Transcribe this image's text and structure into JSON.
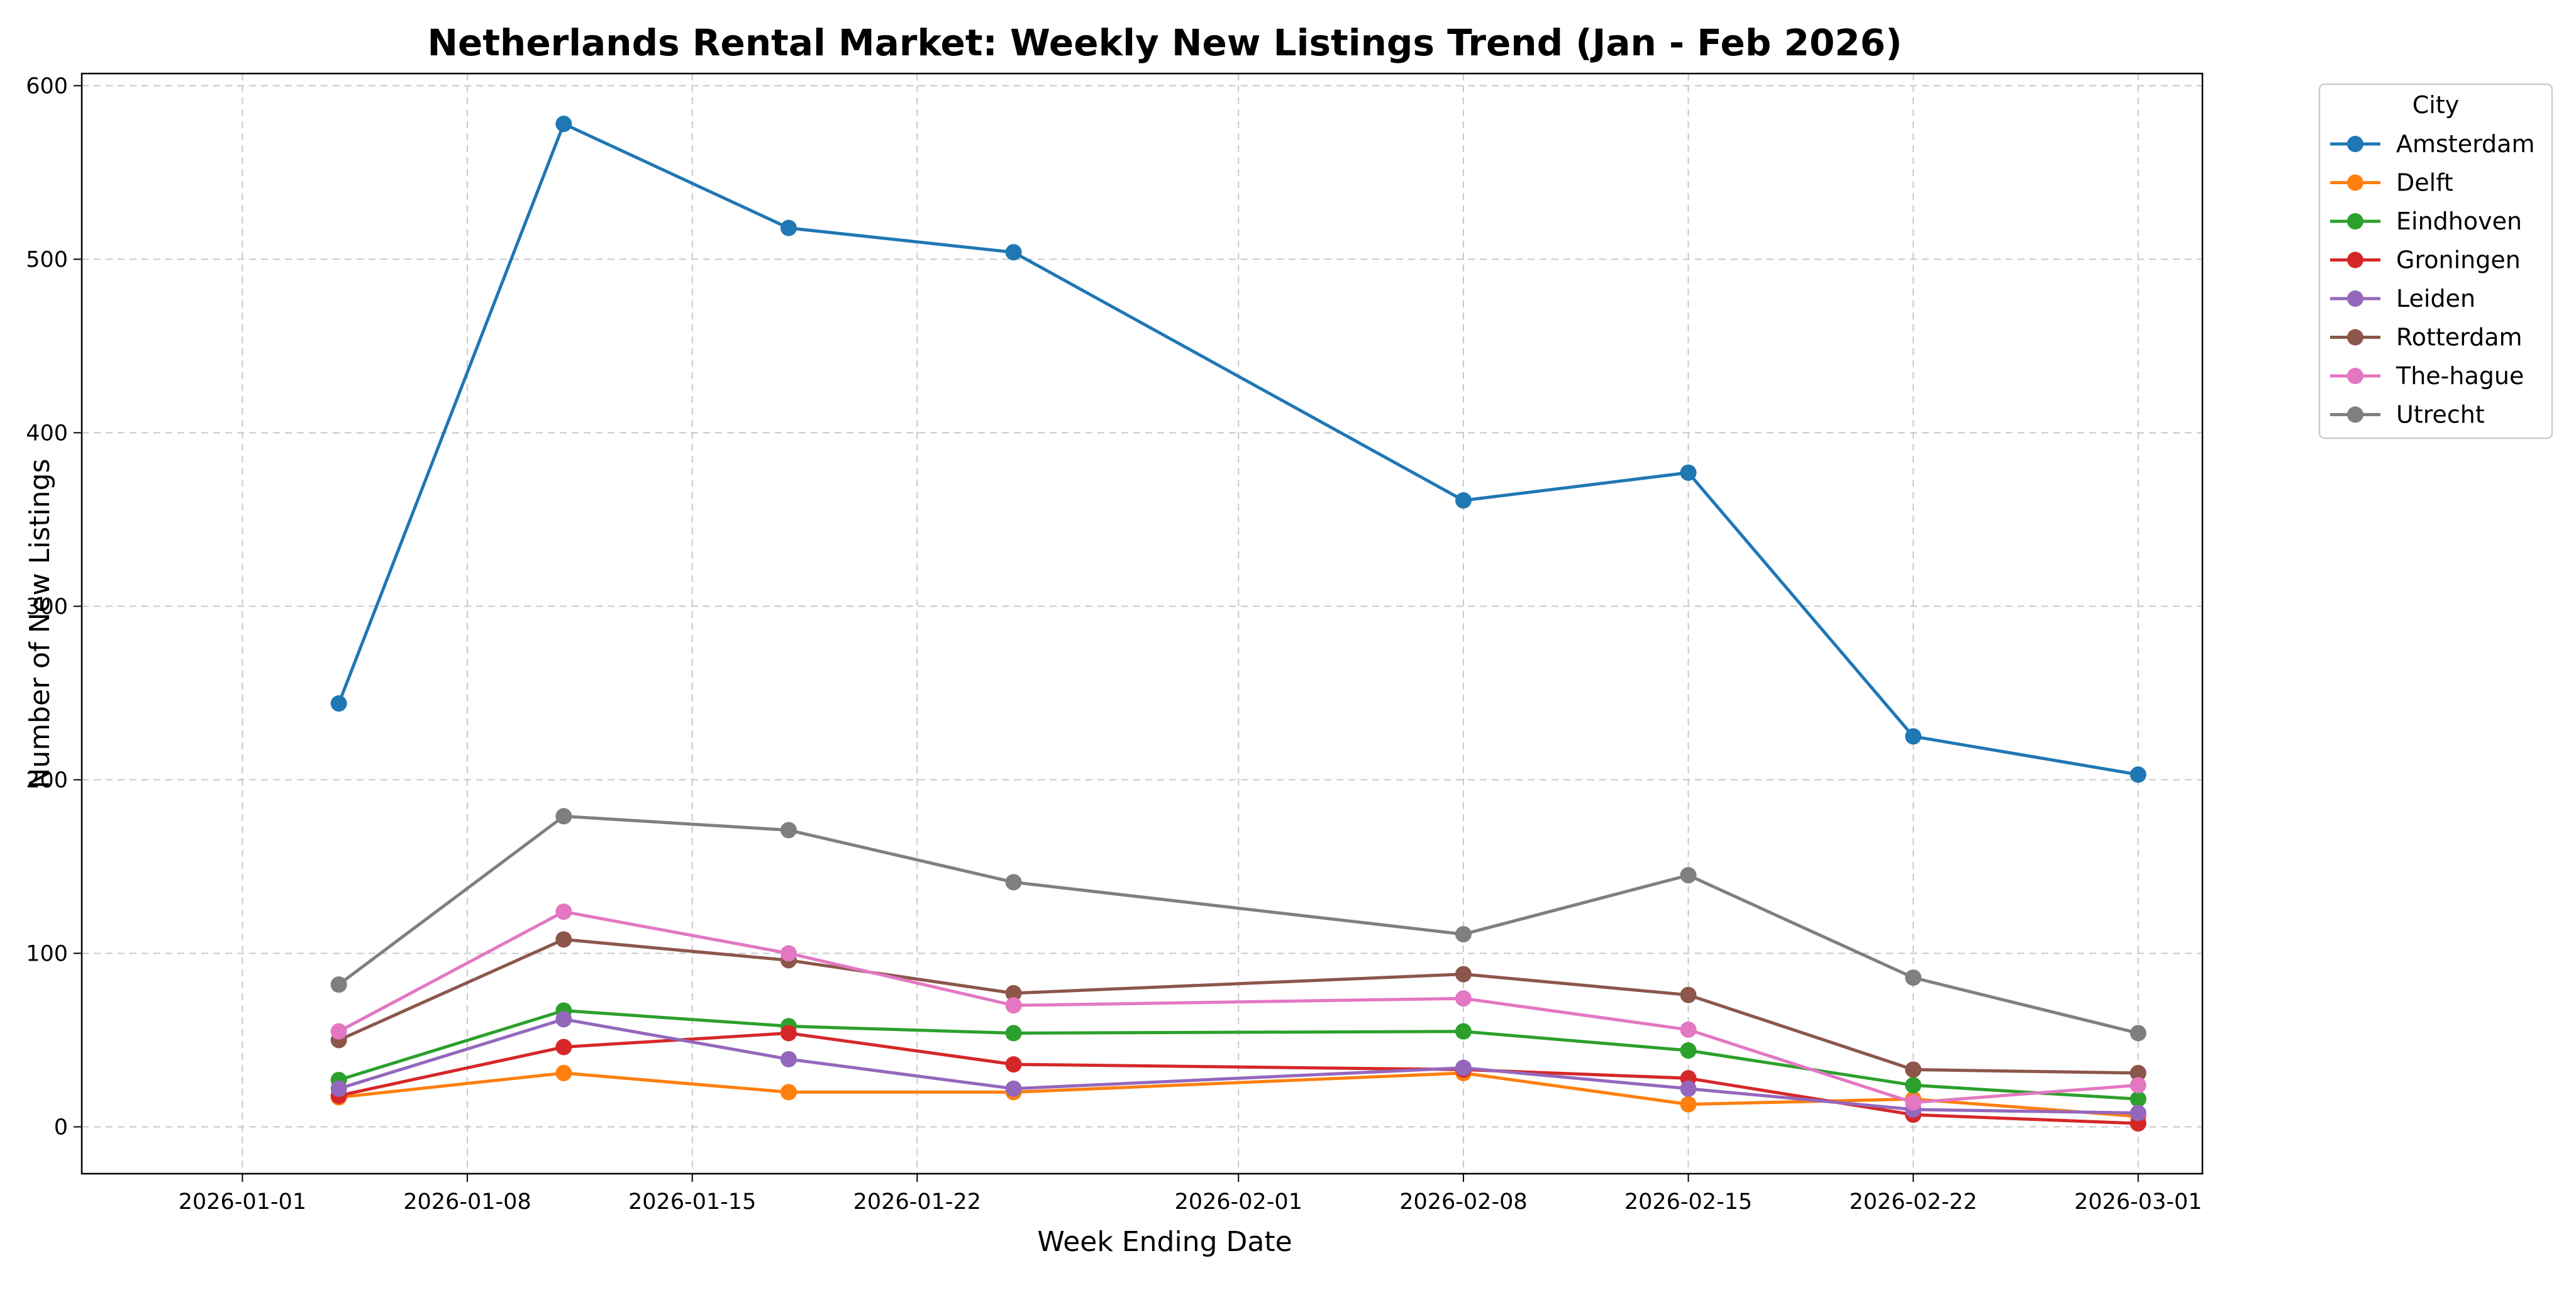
{
  "chart_data": {
    "type": "line",
    "title": "Netherlands Rental Market: Weekly New Listings Trend (Jan - Feb 2026)",
    "xlabel": "Week Ending Date",
    "ylabel": "Number of New Listings",
    "x": [
      "2026-01-04",
      "2026-01-11",
      "2026-01-18",
      "2026-01-25",
      "2026-02-08",
      "2026-02-15",
      "2026-02-22",
      "2026-03-01"
    ],
    "x_ticks": [
      "2026-01-01",
      "2026-01-08",
      "2026-01-15",
      "2026-01-22",
      "2026-02-01",
      "2026-02-08",
      "2026-02-15",
      "2026-02-22",
      "2026-03-01"
    ],
    "xlim": [
      "2025-12-27",
      "2026-03-03"
    ],
    "y_ticks": [
      0,
      100,
      200,
      300,
      400,
      500,
      600
    ],
    "ylim": [
      -27,
      607
    ],
    "grid": true,
    "legend": {
      "title": "City",
      "placement": "outside-top-right"
    },
    "series": [
      {
        "name": "Amsterdam",
        "color": "#1f77b4",
        "values": [
          244,
          578,
          518,
          504,
          361,
          377,
          225,
          203
        ]
      },
      {
        "name": "Delft",
        "color": "#ff7f0e",
        "values": [
          17,
          31,
          20,
          20,
          31,
          13,
          16,
          6
        ]
      },
      {
        "name": "Eindhoven",
        "color": "#2ca02c",
        "values": [
          27,
          67,
          58,
          54,
          55,
          44,
          24,
          16
        ]
      },
      {
        "name": "Groningen",
        "color": "#d62728",
        "values": [
          18,
          46,
          54,
          36,
          33,
          28,
          7,
          2
        ]
      },
      {
        "name": "Leiden",
        "color": "#9467bd",
        "values": [
          22,
          62,
          39,
          22,
          34,
          22,
          10,
          8
        ]
      },
      {
        "name": "Rotterdam",
        "color": "#8c564b",
        "values": [
          50,
          108,
          96,
          77,
          88,
          76,
          33,
          31
        ]
      },
      {
        "name": "The-hague",
        "color": "#e377c2",
        "values": [
          55,
          124,
          100,
          70,
          74,
          56,
          14,
          24
        ]
      },
      {
        "name": "Utrecht",
        "color": "#7f7f7f",
        "values": [
          82,
          179,
          171,
          141,
          111,
          145,
          86,
          54
        ]
      }
    ]
  }
}
